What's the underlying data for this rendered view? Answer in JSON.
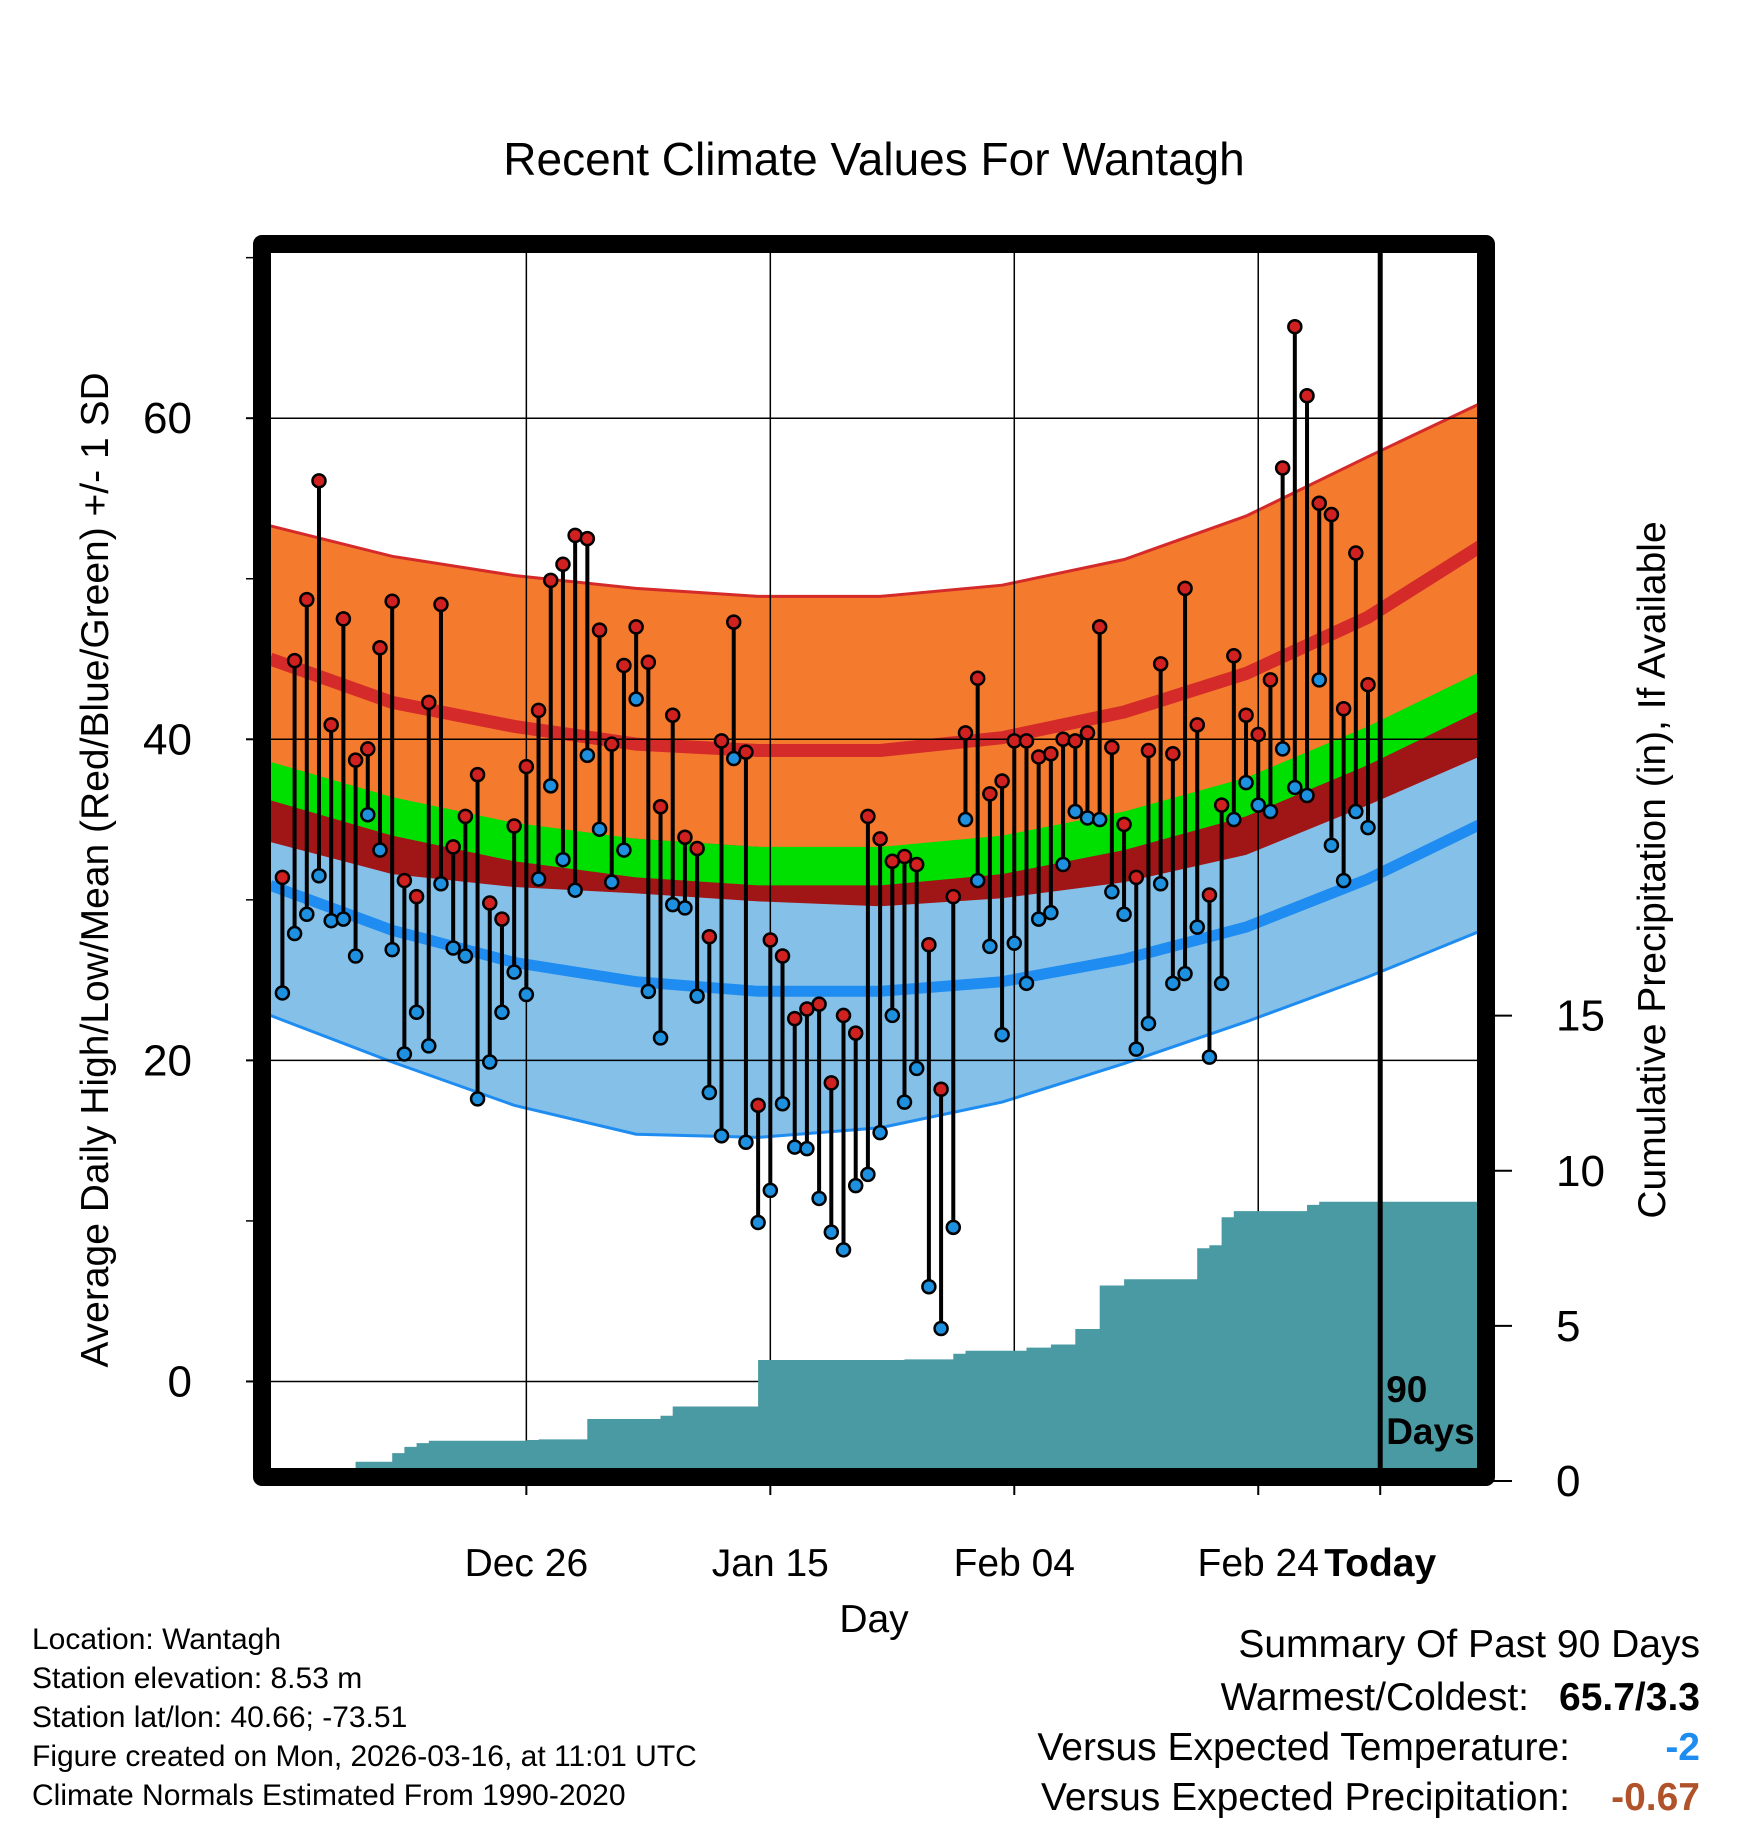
{
  "chart_data": {
    "type": "line",
    "title": "Recent Climate Values For Wantagh",
    "xlabel": "Day",
    "ylabel_left": "Average Daily High/Low/Mean (Red/Blue/Green) +/- 1 SD",
    "ylabel_right": "Cumulative Precipitation (in), If Available",
    "x_range": [
      -92,
      9
    ],
    "ylim_left": [
      -6.2,
      71.1
    ],
    "ylim_right": [
      0,
      40
    ],
    "x_ticks": [
      {
        "x": -70,
        "label": "Dec 26"
      },
      {
        "x": -50,
        "label": "Jan 15"
      },
      {
        "x": -30,
        "label": "Feb 04"
      },
      {
        "x": -10,
        "label": "Feb 24"
      },
      {
        "x": 0,
        "label": "Today"
      }
    ],
    "y_ticks_left": [
      0,
      20,
      40,
      60
    ],
    "y_ticks_right": [
      0,
      5,
      10,
      15
    ],
    "today_marker_label": [
      "90",
      "Days"
    ],
    "normals": {
      "x": [
        -91,
        -81,
        -71,
        -61,
        -51,
        -41,
        -31,
        -21,
        -11,
        -1,
        9
      ],
      "high_mean": [
        45.0,
        42.3,
        40.8,
        39.7,
        39.3,
        39.3,
        40.1,
        41.7,
        44.1,
        47.6,
        52.4
      ],
      "high_upper": [
        53.3,
        51.4,
        50.2,
        49.4,
        48.9,
        48.9,
        49.6,
        51.2,
        53.9,
        57.6,
        61.2
      ],
      "high_lower": [
        37.0,
        35.0,
        34.2,
        33.8,
        33.3,
        33.0,
        33.5,
        34.5,
        36.2,
        39.3,
        42.6
      ],
      "low_mean": [
        30.9,
        28.1,
        26.1,
        24.9,
        24.3,
        24.3,
        24.9,
        26.3,
        28.3,
        31.3,
        35.0
      ],
      "low_upper": [
        38.4,
        37.0,
        35.6,
        34.4,
        33.6,
        33.4,
        34.2,
        35.8,
        37.6,
        39.8,
        41.6
      ],
      "low_lower": [
        22.8,
        19.9,
        17.2,
        15.4,
        15.2,
        15.8,
        17.4,
        19.8,
        22.4,
        25.2,
        28.3
      ],
      "mean": [
        37.4,
        35.2,
        33.6,
        32.6,
        32.1,
        32.1,
        32.8,
        34.3,
        36.4,
        39.6,
        43.3
      ]
    },
    "daily": {
      "x_start": -90,
      "high": [
        31.4,
        44.9,
        48.7,
        56.1,
        40.9,
        47.5,
        38.7,
        39.4,
        45.7,
        48.6,
        31.2,
        30.2,
        42.3,
        48.4,
        33.3,
        35.2,
        37.8,
        29.8,
        28.8,
        34.6,
        38.3,
        41.8,
        49.9,
        50.9,
        52.7,
        52.5,
        46.8,
        39.7,
        44.6,
        47.0,
        44.8,
        35.8,
        41.5,
        33.9,
        33.2,
        27.7,
        39.9,
        47.3,
        39.2,
        17.2,
        27.5,
        26.5,
        22.6,
        23.2,
        23.5,
        18.6,
        22.8,
        21.7,
        35.2,
        33.8,
        32.4,
        32.7,
        32.2,
        27.2,
        18.2,
        30.2,
        40.4,
        43.8,
        36.6,
        37.4,
        39.9,
        39.9,
        38.9,
        39.1,
        40.0,
        39.9,
        40.4,
        47.0,
        39.5,
        34.7,
        31.4,
        39.3,
        44.7,
        39.1,
        49.4,
        40.9,
        30.3,
        35.9,
        45.2,
        41.5,
        40.3,
        43.7,
        56.9,
        65.7,
        61.4,
        54.7,
        54.0,
        41.9,
        51.6,
        43.4
      ],
      "low": [
        24.2,
        27.9,
        29.1,
        31.5,
        28.7,
        28.8,
        26.5,
        35.3,
        33.1,
        26.9,
        20.4,
        23.0,
        20.9,
        31.0,
        27.0,
        26.5,
        17.6,
        19.9,
        23.0,
        25.5,
        24.1,
        31.3,
        37.1,
        32.5,
        30.6,
        39.0,
        34.4,
        31.1,
        33.1,
        42.5,
        24.3,
        21.4,
        29.7,
        29.5,
        24.0,
        18.0,
        15.3,
        38.8,
        14.9,
        9.9,
        11.9,
        17.3,
        14.6,
        14.5,
        11.4,
        9.3,
        8.2,
        12.2,
        12.9,
        15.5,
        22.8,
        17.4,
        19.5,
        5.9,
        3.3,
        9.6,
        35.0,
        31.2,
        27.1,
        21.6,
        27.3,
        24.8,
        28.8,
        29.2,
        32.2,
        35.5,
        35.1,
        35.0,
        30.5,
        29.1,
        20.7,
        22.3,
        31.0,
        24.8,
        25.4,
        28.3,
        20.2,
        24.8,
        35.0,
        37.3,
        35.9,
        35.5,
        39.4,
        37.0,
        36.5,
        43.7,
        33.4,
        31.2,
        35.5,
        34.5
      ]
    },
    "precip": {
      "x_start": -91,
      "cumulative": [
        0.0,
        0.0,
        0.0,
        0.42,
        0.42,
        0.42,
        0.42,
        0.62,
        0.62,
        0.62,
        0.9,
        1.1,
        1.22,
        1.3,
        1.3,
        1.3,
        1.3,
        1.3,
        1.3,
        1.3,
        1.3,
        1.32,
        1.34,
        1.34,
        1.34,
        1.34,
        2.0,
        2.0,
        2.0,
        2.0,
        2.0,
        2.0,
        2.1,
        2.4,
        2.4,
        2.4,
        2.4,
        2.4,
        2.4,
        2.4,
        3.9,
        3.9,
        3.9,
        3.9,
        3.9,
        3.9,
        3.9,
        3.9,
        3.9,
        3.9,
        3.9,
        3.9,
        3.92,
        3.92,
        3.92,
        3.92,
        4.1,
        4.2,
        4.2,
        4.2,
        4.2,
        4.2,
        4.3,
        4.3,
        4.4,
        4.4,
        4.9,
        4.9,
        6.3,
        6.3,
        6.5,
        6.5,
        6.5,
        6.5,
        6.5,
        6.5,
        7.5,
        7.6,
        8.5,
        8.7,
        8.7,
        8.7,
        8.7,
        8.7,
        8.7,
        8.9,
        9.0,
        9.0,
        9.0,
        9.0,
        9.0,
        9.0,
        9.0,
        9.0,
        9.0,
        9.0,
        9.0,
        9.0,
        9.0,
        9.0,
        9.0
      ]
    }
  },
  "footer": {
    "location": "Location: Wantagh",
    "elevation": "Station elevation: 8.53 m",
    "latlon": "Station lat/lon: 40.66; -73.51",
    "created": "Figure created on Mon, 2026-03-16, at 11:01 UTC",
    "normals": "Climate Normals Estimated From 1990-2020"
  },
  "summary": {
    "title": "Summary Of Past 90 Days",
    "warm_cold_label": "Warmest/Coldest:",
    "warm_cold_value": "65.7/3.3",
    "temp_label": "Versus Expected Temperature:",
    "temp_value": "-2",
    "precip_label": "Versus Expected Precipitation:",
    "precip_value": "-0.67"
  },
  "colors": {
    "high_band": "#F47A2D",
    "high_line": "#D42A2A",
    "mean_band": "#00E000",
    "dark_red": "#A01515",
    "low_band": "#85C0E8",
    "low_line": "#1E8CF0",
    "precip": "#4A9AA3",
    "high_dot": "#D02020",
    "low_dot": "#1E90E0",
    "temp_summary": "#1E8CF0",
    "precip_summary": "#B0532A"
  }
}
